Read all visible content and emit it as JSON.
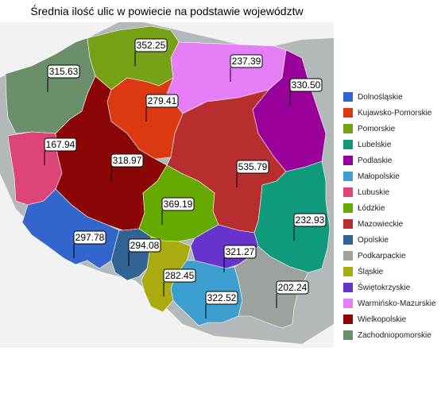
{
  "title": "Średnia ilość ulic w powiecie na podstawie województw",
  "colors": {
    "background": "#b3b8bb",
    "land": "#f2f2f2"
  },
  "regions": [
    {
      "id": "dolnoslaskie",
      "name": "Dolnośląskie",
      "color": "#3366cc",
      "value": "297.78"
    },
    {
      "id": "kujawsko-pomorskie",
      "name": "Kujawsko-Pomorskie",
      "color": "#dc3912",
      "value": "279.41"
    },
    {
      "id": "pomorskie",
      "name": "Pomorskie",
      "color": "#76a117",
      "value": "352.25"
    },
    {
      "id": "lubelskie",
      "name": "Lubelskie",
      "color": "#109a7c",
      "value": "232.93"
    },
    {
      "id": "podlaskie",
      "name": "Podlaskie",
      "color": "#990099",
      "value": "330.50"
    },
    {
      "id": "malopolskie",
      "name": "Małopolskie",
      "color": "#3d9ed0",
      "value": "322.52"
    },
    {
      "id": "lubuskie",
      "name": "Lubuskie",
      "color": "#dd4477",
      "value": "167.94"
    },
    {
      "id": "lodzkie",
      "name": "Łódzkie",
      "color": "#66aa00",
      "value": "369.19"
    },
    {
      "id": "mazowieckie",
      "name": "Mazowieckie",
      "color": "#b82e2e",
      "value": "535.79"
    },
    {
      "id": "opolskie",
      "name": "Opolskie",
      "color": "#316395",
      "value": "294.08"
    },
    {
      "id": "podkarpackie",
      "name": "Podkarpackie",
      "color": "#9ca39c",
      "value": "202.24"
    },
    {
      "id": "slaskie",
      "name": "Śląskie",
      "color": "#aaaa11",
      "value": "282.45"
    },
    {
      "id": "swietokrzyskie",
      "name": "Świętokrzyskie",
      "color": "#6633cc",
      "value": "321.27"
    },
    {
      "id": "warminsko-mazurskie",
      "name": "Warmińsko-Mazurskie",
      "color": "#e67ef8",
      "value": "237.39"
    },
    {
      "id": "wielkopolskie",
      "name": "Wielkopolskie",
      "color": "#8b0707",
      "value": ""
    },
    {
      "id": "zachodniopomorskie",
      "name": "Zachodniopomorskie",
      "color": "#6b8e6b",
      "value": "315.63"
    }
  ],
  "wielkopolskie_value": "318.97"
}
